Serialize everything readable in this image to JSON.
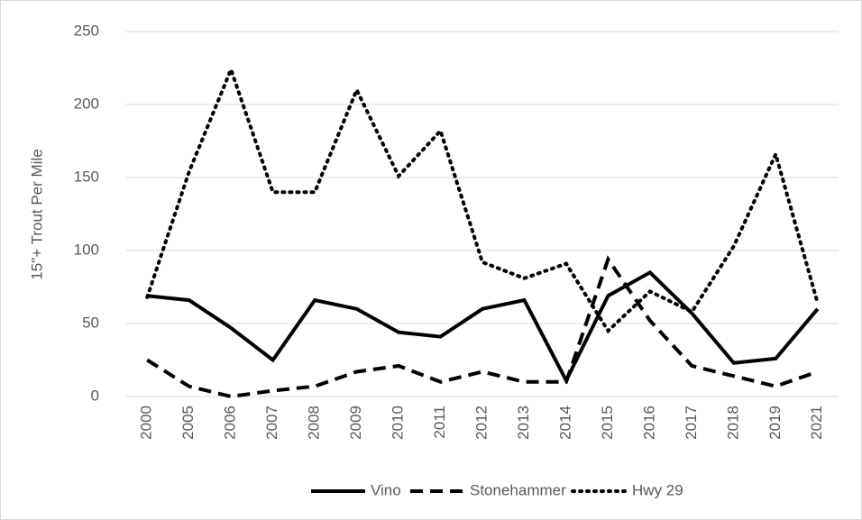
{
  "chart_data": {
    "type": "line",
    "y_label": "15\"+ Trout Per Mile",
    "categories": [
      "2000",
      "2005",
      "2006",
      "2007",
      "2008",
      "2009",
      "2010",
      "2011",
      "2012",
      "2013",
      "2014",
      "2015",
      "2016",
      "2017",
      "2018",
      "2019",
      "2021"
    ],
    "series": [
      {
        "name": "Vino",
        "color": "#000000",
        "dash": "solid",
        "values": [
          69,
          66,
          47,
          25,
          66,
          60,
          44,
          41,
          60,
          66,
          11,
          69,
          85,
          57,
          23,
          26,
          60
        ]
      },
      {
        "name": "Stonehammer",
        "color": "#000000",
        "dash": "dashed",
        "values": [
          25,
          7,
          0,
          4,
          7,
          17,
          21,
          10,
          17,
          10,
          10,
          94,
          52,
          21,
          14,
          7,
          17
        ]
      },
      {
        "name": "Hwy 29",
        "color": "#000000",
        "dash": "dotted",
        "values": [
          68,
          154,
          224,
          140,
          140,
          210,
          151,
          182,
          92,
          81,
          91,
          45,
          72,
          58,
          103,
          166,
          64
        ]
      }
    ],
    "ylim": [
      0,
      250
    ],
    "yticks": [
      0,
      50,
      100,
      150,
      200,
      250
    ],
    "grid": true,
    "legend": "bottom"
  }
}
